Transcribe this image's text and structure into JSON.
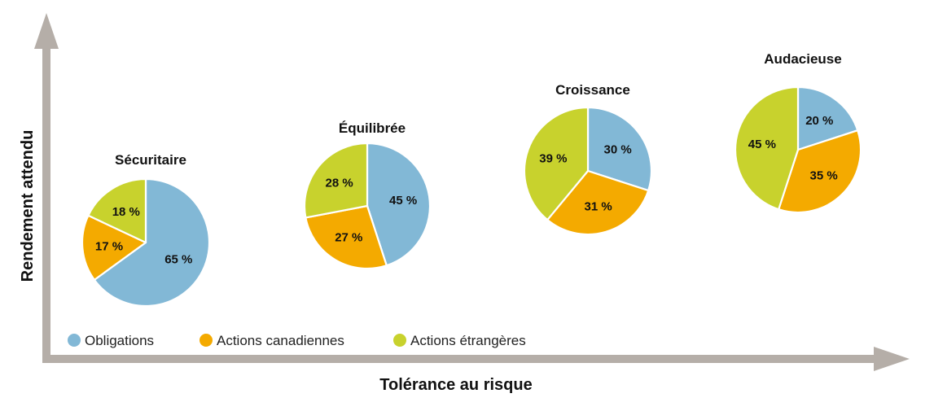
{
  "chart_data": {
    "type": "pie",
    "xlabel": "Tolérance au risque",
    "ylabel": "Rendement attendu",
    "legend_position": "bottom-left",
    "series_names": [
      "Obligations",
      "Actions canadiennes",
      "Actions étrangères"
    ],
    "colors": [
      "#82B8D6",
      "#F4AA00",
      "#C8D22D"
    ],
    "pies": [
      {
        "title": "Sécuritaire",
        "values": [
          65,
          17,
          18
        ],
        "labels": [
          "65 %",
          "17 %",
          "18 %"
        ]
      },
      {
        "title": "Équilibrée",
        "values": [
          45,
          27,
          28
        ],
        "labels": [
          "45 %",
          "27 %",
          "28 %"
        ]
      },
      {
        "title": "Croissance",
        "values": [
          30,
          31,
          39
        ],
        "labels": [
          "30 %",
          "31 %",
          "39 %"
        ]
      },
      {
        "title": "Audacieuse",
        "values": [
          20,
          35,
          45
        ],
        "labels": [
          "20 %",
          "35 %",
          "45 %"
        ]
      }
    ]
  }
}
